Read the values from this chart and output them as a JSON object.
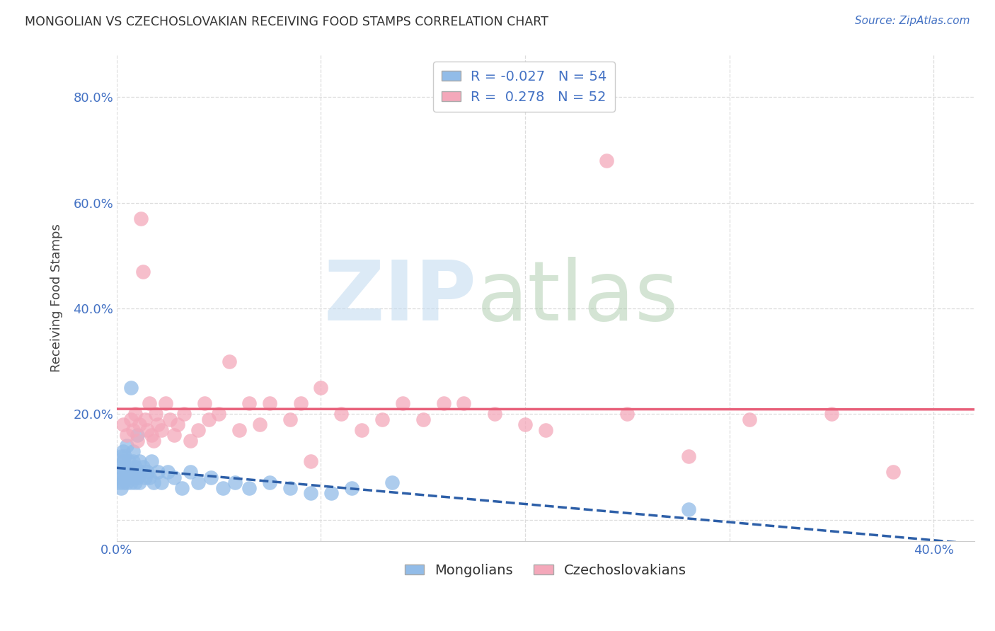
{
  "title": "MONGOLIAN VS CZECHOSLOVAKIAN RECEIVING FOOD STAMPS CORRELATION CHART",
  "source": "Source: ZipAtlas.com",
  "ylabel": "Receiving Food Stamps",
  "xlim": [
    0.0,
    0.42
  ],
  "ylim": [
    -0.04,
    0.88
  ],
  "mongolian_color": "#92bce8",
  "czechoslovakian_color": "#f4a8ba",
  "mongolian_line_color": "#2d5fa8",
  "czechoslovakian_line_color": "#e8607a",
  "r_mongolian": -0.027,
  "n_mongolian": 54,
  "r_czechoslovakian": 0.278,
  "n_czechoslovakian": 52,
  "mongo_x": [
    0.001,
    0.001,
    0.002,
    0.002,
    0.002,
    0.003,
    0.003,
    0.003,
    0.003,
    0.004,
    0.004,
    0.004,
    0.005,
    0.005,
    0.005,
    0.006,
    0.006,
    0.007,
    0.007,
    0.007,
    0.008,
    0.008,
    0.008,
    0.009,
    0.009,
    0.01,
    0.01,
    0.011,
    0.011,
    0.012,
    0.013,
    0.014,
    0.015,
    0.016,
    0.017,
    0.018,
    0.02,
    0.022,
    0.025,
    0.028,
    0.032,
    0.036,
    0.04,
    0.046,
    0.052,
    0.058,
    0.065,
    0.075,
    0.085,
    0.095,
    0.105,
    0.115,
    0.135,
    0.28
  ],
  "mongo_y": [
    0.07,
    0.1,
    0.08,
    0.12,
    0.06,
    0.07,
    0.09,
    0.11,
    0.13,
    0.08,
    0.1,
    0.12,
    0.07,
    0.09,
    0.14,
    0.08,
    0.11,
    0.07,
    0.09,
    0.25,
    0.08,
    0.11,
    0.13,
    0.07,
    0.1,
    0.08,
    0.16,
    0.07,
    0.11,
    0.09,
    0.1,
    0.08,
    0.09,
    0.08,
    0.11,
    0.07,
    0.09,
    0.07,
    0.09,
    0.08,
    0.06,
    0.09,
    0.07,
    0.08,
    0.06,
    0.07,
    0.06,
    0.07,
    0.06,
    0.05,
    0.05,
    0.06,
    0.07,
    0.02
  ],
  "czech_x": [
    0.003,
    0.005,
    0.007,
    0.008,
    0.009,
    0.01,
    0.011,
    0.012,
    0.013,
    0.014,
    0.015,
    0.016,
    0.017,
    0.018,
    0.019,
    0.02,
    0.022,
    0.024,
    0.026,
    0.028,
    0.03,
    0.033,
    0.036,
    0.04,
    0.043,
    0.045,
    0.05,
    0.055,
    0.06,
    0.065,
    0.07,
    0.075,
    0.085,
    0.09,
    0.095,
    0.1,
    0.11,
    0.12,
    0.13,
    0.14,
    0.15,
    0.16,
    0.185,
    0.2,
    0.21,
    0.25,
    0.28,
    0.31,
    0.35,
    0.38,
    0.17,
    0.24
  ],
  "czech_y": [
    0.18,
    0.16,
    0.19,
    0.17,
    0.2,
    0.15,
    0.18,
    0.57,
    0.47,
    0.19,
    0.17,
    0.22,
    0.16,
    0.15,
    0.2,
    0.18,
    0.17,
    0.22,
    0.19,
    0.16,
    0.18,
    0.2,
    0.15,
    0.17,
    0.22,
    0.19,
    0.2,
    0.3,
    0.17,
    0.22,
    0.18,
    0.22,
    0.19,
    0.22,
    0.11,
    0.25,
    0.2,
    0.17,
    0.19,
    0.22,
    0.19,
    0.22,
    0.2,
    0.18,
    0.17,
    0.2,
    0.12,
    0.19,
    0.2,
    0.09,
    0.22,
    0.68
  ],
  "ytick_positions": [
    0.0,
    0.2,
    0.4,
    0.6,
    0.8
  ],
  "ytick_labels": [
    "",
    "20.0%",
    "40.0%",
    "60.0%",
    "80.0%"
  ],
  "xtick_positions": [
    0.0,
    0.1,
    0.2,
    0.3,
    0.4
  ],
  "xtick_labels": [
    "0.0%",
    "",
    "",
    "",
    "40.0%"
  ],
  "grid_color": "#dddddd",
  "tick_color": "#4472c4",
  "background": "#ffffff"
}
